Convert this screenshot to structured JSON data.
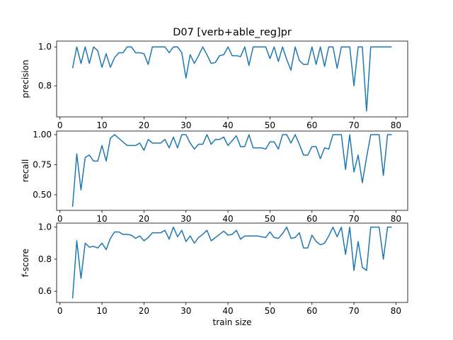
{
  "title": "D07 [verb+able_reg]pr",
  "line_color": "#1f77b4",
  "chart_data": [
    {
      "type": "line",
      "title": "D07 [verb+able_reg]pr",
      "xlabel": "",
      "ylabel": "precision",
      "xlim": [
        -0.8,
        82.8
      ],
      "ylim": [
        0.64,
        1.03
      ],
      "xticks": [
        0,
        10,
        20,
        30,
        40,
        50,
        60,
        70,
        80
      ],
      "yticks": [
        0.8,
        1.0
      ],
      "ytick_labels": [
        "0.8",
        "1.0"
      ],
      "grid": false,
      "x": [
        3,
        4,
        5,
        6,
        7,
        8,
        9,
        10,
        11,
        12,
        13,
        14,
        15,
        16,
        17,
        18,
        19,
        20,
        21,
        22,
        23,
        24,
        25,
        26,
        27,
        28,
        29,
        30,
        31,
        32,
        33,
        34,
        35,
        36,
        37,
        38,
        39,
        40,
        41,
        42,
        43,
        44,
        45,
        46,
        47,
        48,
        49,
        50,
        51,
        52,
        53,
        54,
        55,
        56,
        57,
        58,
        59,
        60,
        61,
        62,
        63,
        64,
        65,
        66,
        67,
        68,
        69,
        70,
        71,
        72,
        73,
        74,
        75,
        76,
        77,
        78,
        79
      ],
      "series": [
        {
          "values": [
            0.89,
            1.0,
            0.915,
            1.0,
            0.915,
            1.0,
            0.98,
            0.895,
            0.965,
            0.895,
            0.945,
            0.97,
            0.97,
            1.0,
            1.0,
            0.97,
            0.97,
            0.965,
            0.91,
            1.0,
            1.0,
            1.0,
            1.0,
            0.97,
            1.0,
            1.0,
            0.97,
            0.84,
            0.96,
            0.915,
            0.955,
            1.0,
            0.96,
            0.915,
            0.92,
            0.955,
            0.96,
            1.0,
            0.955,
            0.955,
            0.95,
            1.0,
            0.905,
            1.0,
            1.0,
            1.0,
            1.0,
            0.94,
            1.0,
            0.925,
            1.0,
            0.935,
            0.88,
            1.0,
            0.93,
            0.91,
            0.91,
            1.0,
            0.91,
            1.0,
            0.9,
            1.0,
            1.0,
            0.89,
            1.0,
            1.0,
            1.0,
            0.8,
            1.0,
            1.0,
            0.67,
            1.0,
            1.0,
            1.0,
            1.0,
            1.0,
            1.0
          ]
        }
      ]
    },
    {
      "type": "line",
      "xlabel": "",
      "ylabel": "recall",
      "xlim": [
        -0.8,
        82.8
      ],
      "ylim": [
        0.37,
        1.03
      ],
      "xticks": [
        0,
        10,
        20,
        30,
        40,
        50,
        60,
        70,
        80
      ],
      "yticks": [
        0.5,
        0.75,
        1.0
      ],
      "ytick_labels": [
        "0.50",
        "0.75",
        "1.00"
      ],
      "grid": false,
      "x": [
        3,
        4,
        5,
        6,
        7,
        8,
        9,
        10,
        11,
        12,
        13,
        14,
        15,
        16,
        17,
        18,
        19,
        20,
        21,
        22,
        23,
        24,
        25,
        26,
        27,
        28,
        29,
        30,
        31,
        32,
        33,
        34,
        35,
        36,
        37,
        38,
        39,
        40,
        41,
        42,
        43,
        44,
        45,
        46,
        47,
        48,
        49,
        50,
        51,
        52,
        53,
        54,
        55,
        56,
        57,
        58,
        59,
        60,
        61,
        62,
        63,
        64,
        65,
        66,
        67,
        68,
        69,
        70,
        71,
        72,
        73,
        74,
        75,
        76,
        77,
        78,
        79
      ],
      "series": [
        {
          "values": [
            0.4,
            0.84,
            0.54,
            0.81,
            0.83,
            0.78,
            0.78,
            0.91,
            0.78,
            0.97,
            1.0,
            0.97,
            0.94,
            0.91,
            0.91,
            0.91,
            0.93,
            0.87,
            0.96,
            0.93,
            0.93,
            0.93,
            0.96,
            0.89,
            0.98,
            0.89,
            1.0,
            1.0,
            0.93,
            0.88,
            0.92,
            0.92,
            1.0,
            0.92,
            0.96,
            0.96,
            0.98,
            0.91,
            0.95,
            0.99,
            0.9,
            0.9,
            1.0,
            0.89,
            0.89,
            0.89,
            0.88,
            0.94,
            0.94,
            0.88,
            1.0,
            1.0,
            0.93,
            1.0,
            0.92,
            0.83,
            0.83,
            0.9,
            0.9,
            0.8,
            0.89,
            0.88,
            1.0,
            1.0,
            1.0,
            0.71,
            1.0,
            0.69,
            0.83,
            0.6,
            0.81,
            1.0,
            1.0,
            1.0,
            0.66,
            1.0,
            1.0
          ]
        }
      ]
    },
    {
      "type": "line",
      "xlabel": "train size",
      "ylabel": "f-score",
      "xlim": [
        -0.8,
        82.8
      ],
      "ylim": [
        0.53,
        1.025
      ],
      "xticks": [
        0,
        10,
        20,
        30,
        40,
        50,
        60,
        70,
        80
      ],
      "yticks": [
        0.6,
        0.8,
        1.0
      ],
      "ytick_labels": [
        "0.6",
        "0.8",
        "1.0"
      ],
      "grid": false,
      "x": [
        3,
        4,
        5,
        6,
        7,
        8,
        9,
        10,
        11,
        12,
        13,
        14,
        15,
        16,
        17,
        18,
        19,
        20,
        21,
        22,
        23,
        24,
        25,
        26,
        27,
        28,
        29,
        30,
        31,
        32,
        33,
        34,
        35,
        36,
        37,
        38,
        39,
        40,
        41,
        42,
        43,
        44,
        45,
        46,
        47,
        48,
        49,
        50,
        51,
        52,
        53,
        54,
        55,
        56,
        57,
        58,
        59,
        60,
        61,
        62,
        63,
        64,
        65,
        66,
        67,
        68,
        69,
        70,
        71,
        72,
        73,
        74,
        75,
        76,
        77,
        78,
        79
      ],
      "series": [
        {
          "values": [
            0.555,
            0.915,
            0.68,
            0.9,
            0.875,
            0.88,
            0.87,
            0.9,
            0.86,
            0.93,
            0.97,
            0.97,
            0.955,
            0.955,
            0.95,
            0.93,
            0.945,
            0.915,
            0.935,
            0.965,
            0.965,
            0.965,
            0.98,
            0.925,
            1.0,
            0.94,
            0.98,
            0.91,
            0.945,
            0.9,
            0.935,
            0.955,
            0.98,
            0.915,
            0.935,
            0.955,
            0.975,
            0.95,
            0.955,
            0.98,
            0.925,
            0.945,
            0.945,
            0.945,
            0.945,
            0.94,
            0.935,
            0.97,
            0.935,
            0.93,
            0.96,
            1.0,
            0.93,
            0.935,
            0.965,
            0.87,
            0.87,
            0.95,
            0.91,
            0.89,
            0.9,
            0.945,
            1.0,
            0.94,
            1.0,
            0.83,
            1.0,
            0.73,
            0.91,
            0.75,
            0.73,
            1.0,
            1.0,
            1.0,
            0.8,
            1.0,
            1.0
          ]
        }
      ]
    }
  ]
}
